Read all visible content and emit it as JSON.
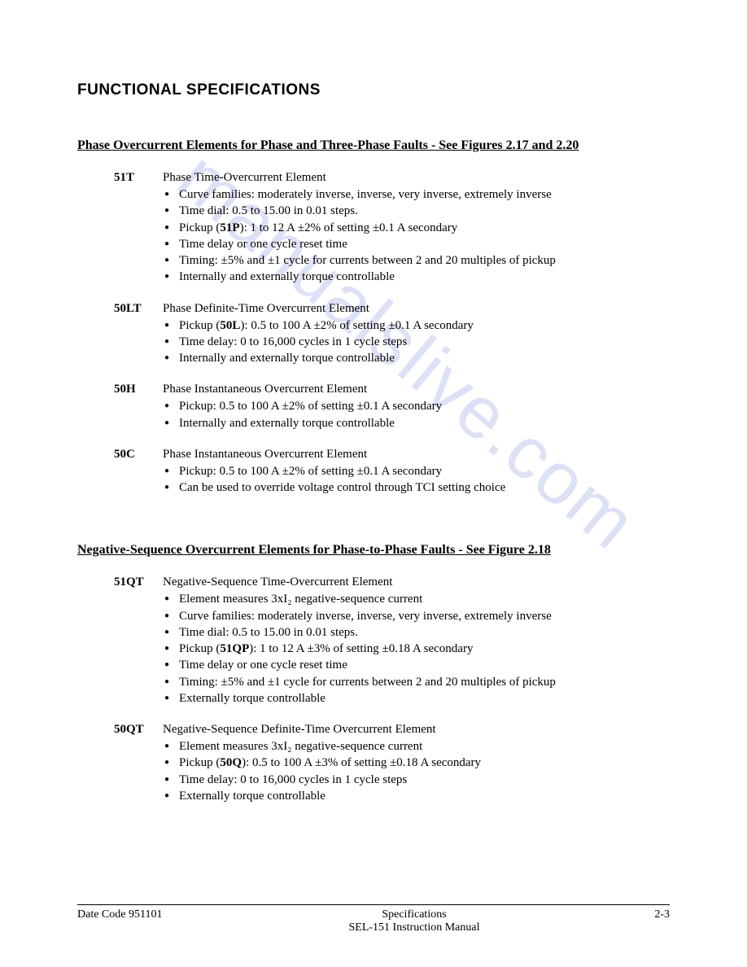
{
  "watermark": "manualslive.com",
  "heading": "FUNCTIONAL SPECIFICATIONS",
  "section1": {
    "title": "Phase Overcurrent Elements for Phase and Three-Phase Faults - See Figures 2.17 and 2.20",
    "items": [
      {
        "label": "51T",
        "title": "Phase Time-Overcurrent Element",
        "bullets": [
          "Curve families:  moderately inverse, inverse, very inverse, extremely inverse",
          "Time dial:  0.5 to 15.00 in 0.01 steps.",
          "Pickup (51P):  1 to 12 A ±2% of setting ±0.1 A secondary",
          "Time delay or one cycle reset time",
          "Timing:  ±5% and ±1 cycle for currents between 2 and 20 multiples of pickup",
          "Internally and externally torque controllable"
        ]
      },
      {
        "label": "50LT",
        "title": "Phase Definite-Time Overcurrent Element",
        "bullets": [
          "Pickup (50L):  0.5 to 100 A ±2% of setting ±0.1 A secondary",
          "Time delay:  0 to 16,000 cycles in 1 cycle steps",
          "Internally and externally torque controllable"
        ]
      },
      {
        "label": "50H",
        "title": "Phase Instantaneous Overcurrent Element",
        "bullets": [
          "Pickup:  0.5 to 100 A ±2% of setting ±0.1 A secondary",
          "Internally and externally torque controllable"
        ]
      },
      {
        "label": "50C",
        "title": "Phase Instantaneous Overcurrent Element",
        "bullets": [
          "Pickup:  0.5 to 100 A ±2% of setting ±0.1 A secondary",
          "Can be used to override voltage control through TCI setting choice"
        ]
      }
    ]
  },
  "section2": {
    "title": "Negative-Sequence Overcurrent Elements for Phase-to-Phase Faults - See Figure 2.18",
    "items": [
      {
        "label": "51QT",
        "title": "Negative-Sequence Time-Overcurrent Element",
        "bullets": [
          "Element measures 3xI₂ negative-sequence current",
          "Curve families:  moderately inverse, inverse, very inverse, extremely inverse",
          "Time dial:  0.5 to 15.00 in 0.01 steps.",
          "Pickup (51QP):  1 to 12 A ±3% of setting ±0.18 A secondary",
          "Time delay or one cycle reset time",
          "Timing:  ±5% and ±1 cycle for currents between 2 and 20 multiples of pickup",
          "Externally torque controllable"
        ]
      },
      {
        "label": "50QT",
        "title": "Negative-Sequence Definite-Time Overcurrent Element",
        "bullets": [
          "Element measures 3xI₂ negative-sequence current",
          "Pickup (50Q): 0.5 to 100 A ±3% of setting ±0.18 A secondary",
          "Time delay:  0 to 16,000 cycles in 1 cycle steps",
          "Externally torque controllable"
        ]
      }
    ]
  },
  "footer": {
    "left": "Date Code 951101",
    "center1": "Specifications",
    "center2": "SEL-151 Instruction Manual",
    "right": "2-3"
  }
}
